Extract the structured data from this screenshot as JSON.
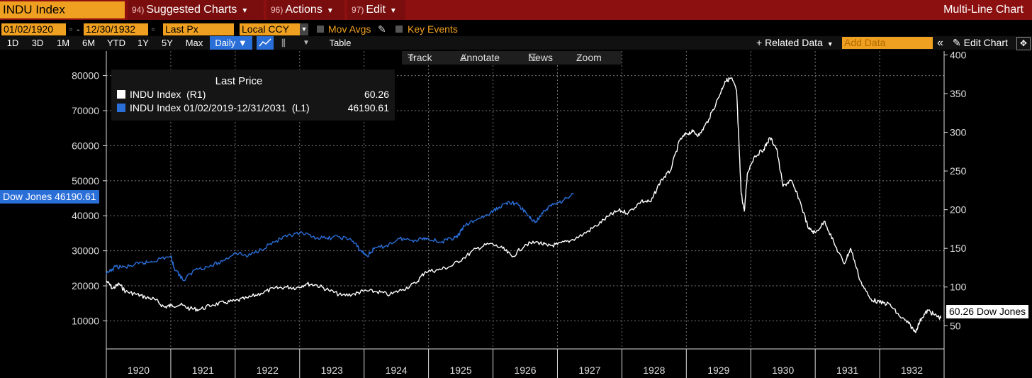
{
  "header": {
    "ticker": "INDU Index",
    "menus": [
      {
        "num": "94)",
        "label": "Suggested Charts"
      },
      {
        "num": "96)",
        "label": "Actions"
      },
      {
        "num": "97)",
        "label": "Edit"
      }
    ],
    "chart_type": "Multi-Line Chart"
  },
  "controls": {
    "start_date": "01/02/1920",
    "end_date": "12/30/1932",
    "field": "Last Px",
    "currency": "Local CCY",
    "mov_avgs": "Mov Avgs",
    "key_events": "Key Events"
  },
  "timeframes": [
    "1D",
    "3D",
    "1M",
    "6M",
    "YTD",
    "1Y",
    "5Y",
    "Max"
  ],
  "frequency": "Daily ▼",
  "table_label": "Table",
  "related_data": "+ Related Data",
  "add_data_placeholder": "Add Data",
  "edit_chart": "Edit Chart",
  "tools": {
    "track": "Track",
    "annotate": "Annotate",
    "news": "News",
    "zoom": "Zoom"
  },
  "legend": {
    "title": "Last Price",
    "series1": "INDU Index  (R1)",
    "series1_value": "60.26",
    "series2": "INDU Index 01/02/2019-12/31/2031  (L1)",
    "series2_value": "46190.61"
  },
  "tags": {
    "left": "Dow Jones 46190.61",
    "right": "60.26 Dow Jones"
  },
  "colors": {
    "white_series": "#ffffff",
    "blue_series": "#2a6ed8",
    "accent": "#f0a020",
    "header": "#8c1010"
  },
  "chart_data": {
    "type": "line",
    "title": "Last Price",
    "x_tick_labels": [
      "1920",
      "1921",
      "1922",
      "1923",
      "1924",
      "1925",
      "1926",
      "1927",
      "1928",
      "1929",
      "1930",
      "1931",
      "1932"
    ],
    "x_range": [
      1920.0,
      1933.0
    ],
    "left_axis": {
      "range": [
        2000,
        87000
      ],
      "ticks": [
        10000,
        20000,
        30000,
        40000,
        50000,
        60000,
        70000,
        80000
      ]
    },
    "right_axis": {
      "range": [
        20,
        405
      ],
      "ticks": [
        50,
        100,
        150,
        200,
        250,
        300,
        350,
        400
      ]
    },
    "series": [
      {
        "name": "INDU Index (R1)",
        "axis": "right",
        "color": "#ffffff",
        "points": [
          [
            1920.0,
            108
          ],
          [
            1920.1,
            98
          ],
          [
            1920.2,
            104
          ],
          [
            1920.3,
            94
          ],
          [
            1920.45,
            91
          ],
          [
            1920.6,
            87
          ],
          [
            1920.75,
            84
          ],
          [
            1920.9,
            74
          ],
          [
            1921.0,
            76
          ],
          [
            1921.15,
            77
          ],
          [
            1921.3,
            72
          ],
          [
            1921.45,
            71
          ],
          [
            1921.65,
            77
          ],
          [
            1921.85,
            80
          ],
          [
            1922.0,
            82
          ],
          [
            1922.2,
            86
          ],
          [
            1922.4,
            92
          ],
          [
            1922.6,
            98
          ],
          [
            1922.8,
            100
          ],
          [
            1922.95,
            99
          ],
          [
            1923.1,
            104
          ],
          [
            1923.25,
            103
          ],
          [
            1923.45,
            96
          ],
          [
            1923.65,
            89
          ],
          [
            1923.85,
            91
          ],
          [
            1924.0,
            95
          ],
          [
            1924.2,
            94
          ],
          [
            1924.4,
            90
          ],
          [
            1924.6,
            97
          ],
          [
            1924.8,
            105
          ],
          [
            1924.95,
            120
          ],
          [
            1925.15,
            122
          ],
          [
            1925.35,
            127
          ],
          [
            1925.55,
            138
          ],
          [
            1925.75,
            150
          ],
          [
            1925.95,
            156
          ],
          [
            1926.15,
            150
          ],
          [
            1926.3,
            139
          ],
          [
            1926.5,
            155
          ],
          [
            1926.7,
            158
          ],
          [
            1926.85,
            153
          ],
          [
            1927.0,
            155
          ],
          [
            1927.2,
            160
          ],
          [
            1927.4,
            168
          ],
          [
            1927.6,
            179
          ],
          [
            1927.8,
            192
          ],
          [
            1927.95,
            199
          ],
          [
            1928.1,
            196
          ],
          [
            1928.3,
            211
          ],
          [
            1928.45,
            210
          ],
          [
            1928.6,
            237
          ],
          [
            1928.75,
            250
          ],
          [
            1928.9,
            290
          ],
          [
            1929.0,
            298
          ],
          [
            1929.1,
            301
          ],
          [
            1929.2,
            296
          ],
          [
            1929.35,
            317
          ],
          [
            1929.5,
            345
          ],
          [
            1929.6,
            366
          ],
          [
            1929.7,
            370
          ],
          [
            1929.78,
            354
          ],
          [
            1929.85,
            222
          ],
          [
            1929.9,
            198
          ],
          [
            1929.95,
            248
          ],
          [
            1930.05,
            268
          ],
          [
            1930.2,
            278
          ],
          [
            1930.3,
            293
          ],
          [
            1930.4,
            279
          ],
          [
            1930.5,
            230
          ],
          [
            1930.62,
            238
          ],
          [
            1930.75,
            214
          ],
          [
            1930.9,
            175
          ],
          [
            1931.0,
            170
          ],
          [
            1931.15,
            185
          ],
          [
            1931.3,
            155
          ],
          [
            1931.45,
            130
          ],
          [
            1931.55,
            150
          ],
          [
            1931.7,
            108
          ],
          [
            1931.85,
            85
          ],
          [
            1932.0,
            80
          ],
          [
            1932.15,
            78
          ],
          [
            1932.3,
            63
          ],
          [
            1932.45,
            53
          ],
          [
            1932.55,
            42
          ],
          [
            1932.65,
            60
          ],
          [
            1932.75,
            70
          ],
          [
            1932.85,
            64
          ],
          [
            1932.95,
            60
          ]
        ]
      },
      {
        "name": "INDU Index 01/02/2019-12/31/2031 (L1)",
        "axis": "left",
        "color": "#2a6ed8",
        "points": [
          [
            1920.0,
            23300
          ],
          [
            1920.15,
            25500
          ],
          [
            1920.3,
            25300
          ],
          [
            1920.5,
            26300
          ],
          [
            1920.65,
            26700
          ],
          [
            1920.8,
            27500
          ],
          [
            1921.0,
            28500
          ],
          [
            1921.05,
            25300
          ],
          [
            1921.2,
            21500
          ],
          [
            1921.4,
            25000
          ],
          [
            1921.6,
            25500
          ],
          [
            1921.8,
            27000
          ],
          [
            1922.0,
            29500
          ],
          [
            1922.2,
            28500
          ],
          [
            1922.4,
            30500
          ],
          [
            1922.6,
            32500
          ],
          [
            1922.8,
            34000
          ],
          [
            1923.0,
            35000
          ],
          [
            1923.2,
            34000
          ],
          [
            1923.4,
            33500
          ],
          [
            1923.6,
            34000
          ],
          [
            1923.8,
            33200
          ],
          [
            1923.95,
            30000
          ],
          [
            1924.05,
            28500
          ],
          [
            1924.15,
            30500
          ],
          [
            1924.35,
            31500
          ],
          [
            1924.55,
            33500
          ],
          [
            1924.75,
            33000
          ],
          [
            1924.9,
            33500
          ],
          [
            1925.0,
            33500
          ],
          [
            1925.2,
            32500
          ],
          [
            1925.35,
            33500
          ],
          [
            1925.45,
            34000
          ],
          [
            1925.55,
            37000
          ],
          [
            1925.75,
            39000
          ],
          [
            1925.95,
            40500
          ],
          [
            1926.1,
            42500
          ],
          [
            1926.25,
            44000
          ],
          [
            1926.4,
            43000
          ],
          [
            1926.55,
            40000
          ],
          [
            1926.65,
            38000
          ],
          [
            1926.8,
            41500
          ],
          [
            1926.95,
            43500
          ],
          [
            1927.1,
            44500
          ],
          [
            1927.25,
            46190
          ]
        ]
      }
    ]
  }
}
